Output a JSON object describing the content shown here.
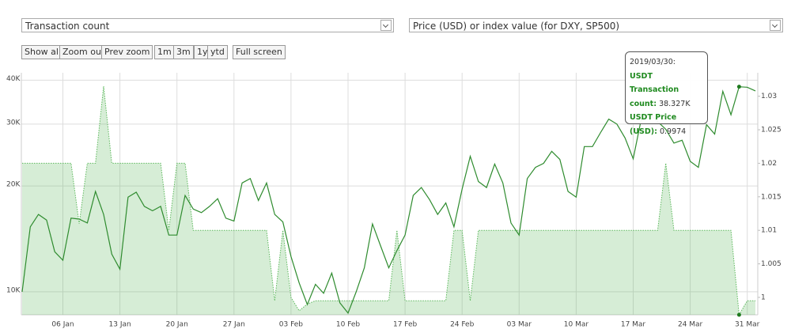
{
  "controls": {
    "left_select": "Transaction count",
    "right_select": "Price (USD) or index value (for DXY, SP500)",
    "buttons": [
      "Show all",
      "Zoom out",
      "Prev zoom",
      "1m",
      "3m",
      "1y",
      "ytd",
      "Full screen"
    ]
  },
  "chart_data": {
    "type": "line",
    "x": [
      "2019-01-01",
      "2019-01-02",
      "2019-01-03",
      "2019-01-04",
      "2019-01-05",
      "2019-01-06",
      "2019-01-07",
      "2019-01-08",
      "2019-01-09",
      "2019-01-10",
      "2019-01-11",
      "2019-01-12",
      "2019-01-13",
      "2019-01-14",
      "2019-01-15",
      "2019-01-16",
      "2019-01-17",
      "2019-01-18",
      "2019-01-19",
      "2019-01-20",
      "2019-01-21",
      "2019-01-22",
      "2019-01-23",
      "2019-01-24",
      "2019-01-25",
      "2019-01-26",
      "2019-01-27",
      "2019-01-28",
      "2019-01-29",
      "2019-01-30",
      "2019-01-31",
      "2019-02-01",
      "2019-02-02",
      "2019-02-03",
      "2019-02-04",
      "2019-02-05",
      "2019-02-06",
      "2019-02-07",
      "2019-02-08",
      "2019-02-09",
      "2019-02-10",
      "2019-02-11",
      "2019-02-12",
      "2019-02-13",
      "2019-02-14",
      "2019-02-15",
      "2019-02-16",
      "2019-02-17",
      "2019-02-18",
      "2019-02-19",
      "2019-02-20",
      "2019-02-21",
      "2019-02-22",
      "2019-02-23",
      "2019-02-24",
      "2019-02-25",
      "2019-02-26",
      "2019-02-27",
      "2019-02-28",
      "2019-03-01",
      "2019-03-02",
      "2019-03-03",
      "2019-03-04",
      "2019-03-05",
      "2019-03-06",
      "2019-03-07",
      "2019-03-08",
      "2019-03-09",
      "2019-03-10",
      "2019-03-11",
      "2019-03-12",
      "2019-03-13",
      "2019-03-14",
      "2019-03-15",
      "2019-03-16",
      "2019-03-17",
      "2019-03-18",
      "2019-03-19",
      "2019-03-20",
      "2019-03-21",
      "2019-03-22",
      "2019-03-23",
      "2019-03-24",
      "2019-03-25",
      "2019-03-26",
      "2019-03-27",
      "2019-03-28",
      "2019-03-29",
      "2019-03-30",
      "2019-03-31",
      "2019-04-01"
    ],
    "series": [
      {
        "name": "USDT Transaction count",
        "color": "#2e8b2e",
        "style": "line",
        "values": [
          10000,
          15300,
          16600,
          16000,
          13000,
          12300,
          16200,
          16100,
          15700,
          19300,
          16600,
          12800,
          11600,
          18600,
          19200,
          17500,
          17000,
          17500,
          14500,
          14500,
          18800,
          17200,
          16800,
          17500,
          18400,
          16200,
          15900,
          20400,
          21000,
          18200,
          20400,
          16600,
          15800,
          12600,
          10600,
          9200,
          10500,
          9900,
          11300,
          9300,
          8700,
          10000,
          11700,
          15600,
          13500,
          11700,
          13100,
          14500,
          18800,
          19800,
          18300,
          16600,
          17900,
          15300,
          19600,
          24300,
          20600,
          19800,
          23100,
          20400,
          15700,
          14500,
          21000,
          22600,
          23200,
          25100,
          23800,
          19300,
          18600,
          25900,
          25900,
          28400,
          31000,
          30000,
          27400,
          23900,
          31100,
          32000,
          30500,
          29000,
          26500,
          27000,
          23500,
          22600,
          29900,
          28100,
          37200,
          31900,
          38327,
          38200,
          37300
        ]
      },
      {
        "name": "USDT Price (USD)",
        "color": "#5cb85c",
        "style": "area",
        "axis": "y2",
        "values": [
          1.02,
          1.02,
          1.02,
          1.02,
          1.02,
          1.02,
          1.02,
          1.011,
          1.02,
          1.02,
          1.0315,
          1.02,
          1.02,
          1.02,
          1.02,
          1.02,
          1.02,
          1.02,
          1.01,
          1.02,
          1.02,
          1.01,
          1.01,
          1.01,
          1.01,
          1.01,
          1.01,
          1.01,
          1.01,
          1.01,
          1.01,
          0.9995,
          1.01,
          1.0,
          0.998,
          0.999,
          0.9995,
          0.9995,
          0.9995,
          0.9995,
          0.9995,
          0.9995,
          0.9995,
          0.9995,
          0.9995,
          0.9995,
          1.01,
          0.9995,
          0.9995,
          0.9995,
          0.9995,
          0.9995,
          0.9995,
          1.01,
          1.01,
          0.9995,
          1.01,
          1.01,
          1.01,
          1.01,
          1.01,
          1.01,
          1.01,
          1.01,
          1.01,
          1.01,
          1.01,
          1.01,
          1.01,
          1.01,
          1.01,
          1.01,
          1.01,
          1.01,
          1.01,
          1.01,
          1.01,
          1.01,
          1.01,
          1.02,
          1.01,
          1.01,
          1.01,
          1.01,
          1.01,
          1.01,
          1.01,
          1.01,
          0.9974,
          0.9995,
          0.9995
        ]
      }
    ],
    "xlim": [
      "2019-01-01",
      "2019-04-01"
    ],
    "xticks": [
      {
        "value": "2019-01-06",
        "label": "06 Jan"
      },
      {
        "value": "2019-01-13",
        "label": "13 Jan"
      },
      {
        "value": "2019-01-20",
        "label": "20 Jan"
      },
      {
        "value": "2019-01-27",
        "label": "27 Jan"
      },
      {
        "value": "2019-02-03",
        "label": "03 Feb"
      },
      {
        "value": "2019-02-10",
        "label": "10 Feb"
      },
      {
        "value": "2019-02-17",
        "label": "17 Feb"
      },
      {
        "value": "2019-02-24",
        "label": "24 Feb"
      },
      {
        "value": "2019-03-03",
        "label": "03 Mar"
      },
      {
        "value": "2019-03-10",
        "label": "10 Mar"
      },
      {
        "value": "2019-03-17",
        "label": "17 Mar"
      },
      {
        "value": "2019-03-24",
        "label": "24 Mar"
      },
      {
        "value": "2019-03-31",
        "label": "31 Mar"
      }
    ],
    "ylim": [
      8600,
      42000
    ],
    "log_scale": true,
    "yticks": [
      {
        "value": 10000,
        "label": "10K"
      },
      {
        "value": 20000,
        "label": "20K"
      },
      {
        "value": 30000,
        "label": "30K"
      },
      {
        "value": 40000,
        "label": "40K"
      }
    ],
    "y2lim": [
      0.9974,
      1.0335
    ],
    "y2ticks": [
      1,
      1.005,
      1.01,
      1.015,
      1.02,
      1.025,
      1.03
    ],
    "grid": true,
    "tooltip": {
      "title": "2019/03/30:",
      "index": 88,
      "count_label": "38.327K"
    }
  }
}
